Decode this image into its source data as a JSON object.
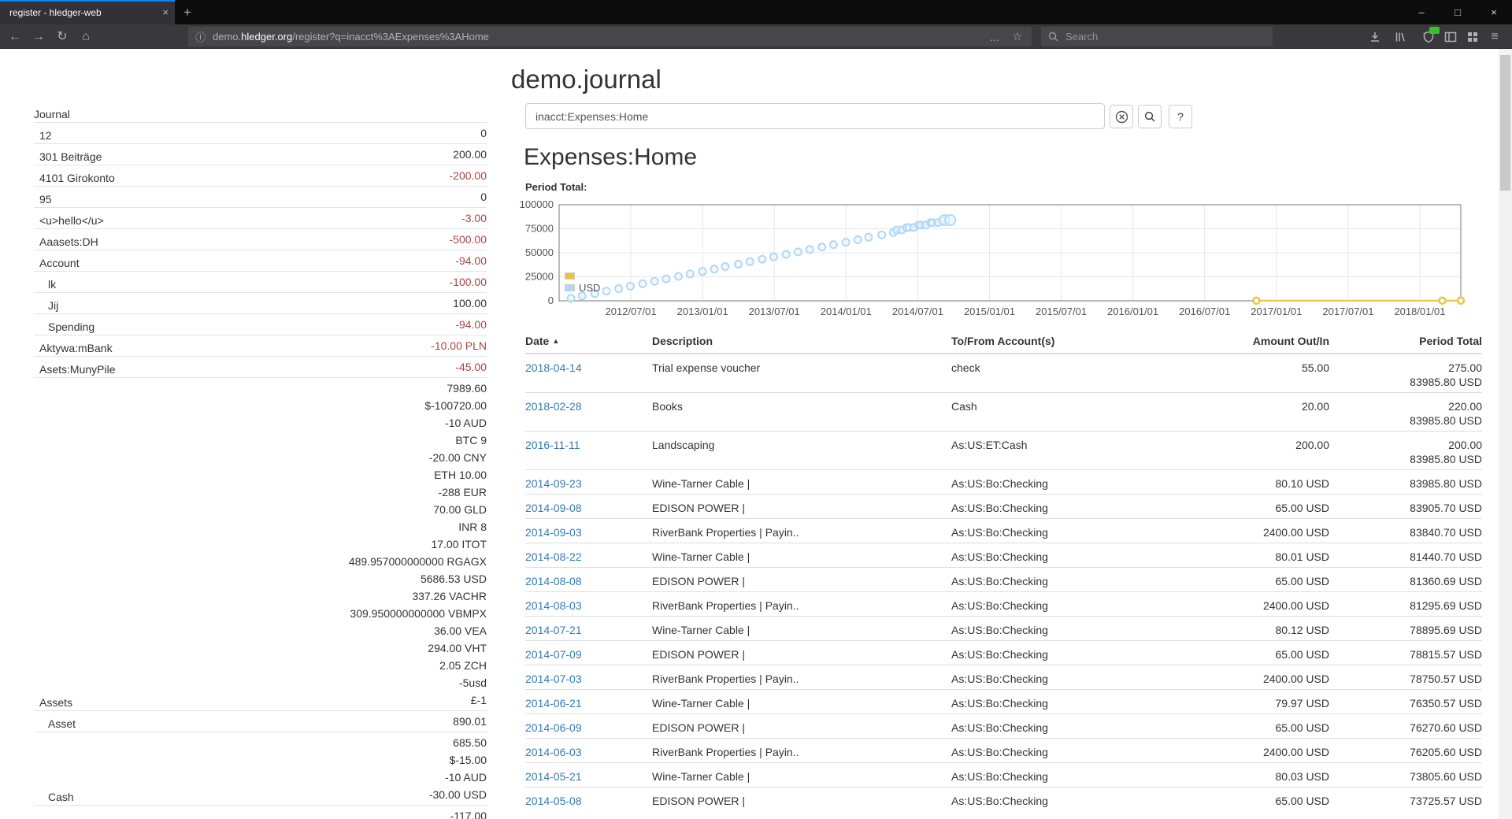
{
  "browser": {
    "tab_title": "register - hledger-web",
    "url": {
      "subdomain": "demo.",
      "domain": "hledger.org",
      "path": "/register?q=inacct%3AExpenses%3AHome"
    },
    "search_placeholder": "Search"
  },
  "icons": {
    "new_tab": "+",
    "tab_close": "×",
    "window_minimize": "–",
    "window_maximize": "□",
    "window_close": "×",
    "back": "←",
    "forward": "→",
    "reload": "↻",
    "home": "⌂",
    "info": "ⓘ",
    "page_actions": "…",
    "bookmark_star": "☆",
    "menu": "≡",
    "help": "?",
    "sort_asc": "▲"
  },
  "colors": {
    "link": "#337ab7",
    "negative": "#a94442",
    "tab_accent": "#0a84ff",
    "series_yellow": "#edc240",
    "series_blue": "#afd8f8"
  },
  "page": {
    "title": "demo.journal",
    "query": "inacct:Expenses:Home",
    "heading": "Expenses:Home",
    "chart_label": "Period Total:"
  },
  "sidebar": {
    "journal_label": "Journal",
    "accounts": [
      {
        "name": "12",
        "indent": 1,
        "amounts": [
          {
            "text": "0",
            "neg": false
          }
        ]
      },
      {
        "name": "301 Beiträge",
        "indent": 1,
        "amounts": [
          {
            "text": "200.00",
            "neg": false
          }
        ]
      },
      {
        "name": "4101 Girokonto",
        "indent": 1,
        "amounts": [
          {
            "text": "-200.00",
            "neg": true
          }
        ]
      },
      {
        "name": "95",
        "indent": 1,
        "amounts": [
          {
            "text": "0",
            "neg": false
          }
        ]
      },
      {
        "name": "<u>hello</u>",
        "indent": 1,
        "amounts": [
          {
            "text": "-3.00",
            "neg": true
          }
        ]
      },
      {
        "name": "Aaasets:DH",
        "indent": 1,
        "amounts": [
          {
            "text": "-500.00",
            "neg": true
          }
        ]
      },
      {
        "name": "Account",
        "indent": 1,
        "amounts": [
          {
            "text": "-94.00",
            "neg": true
          }
        ]
      },
      {
        "name": "lk",
        "indent": 2,
        "amounts": [
          {
            "text": "-100.00",
            "neg": true
          }
        ]
      },
      {
        "name": "Jij",
        "indent": 2,
        "amounts": [
          {
            "text": "100.00",
            "neg": false
          }
        ]
      },
      {
        "name": "Spending",
        "indent": 2,
        "amounts": [
          {
            "text": "-94.00",
            "neg": true
          }
        ]
      },
      {
        "name": "Aktywa:mBank",
        "indent": 1,
        "amounts": [
          {
            "text": "-10.00 PLN",
            "neg": true
          }
        ]
      },
      {
        "name": "Asets:MunyPile",
        "indent": 1,
        "amounts": [
          {
            "text": "-45.00",
            "neg": true
          }
        ]
      },
      {
        "name": "Assets",
        "indent": 1,
        "amounts": [
          {
            "text": "7989.60",
            "neg": false
          },
          {
            "text": "$-100720.00",
            "neg": false
          },
          {
            "text": "-10 AUD",
            "neg": false
          },
          {
            "text": "BTC 9",
            "neg": false
          },
          {
            "text": "-20.00 CNY",
            "neg": false
          },
          {
            "text": "ETH 10.00",
            "neg": false
          },
          {
            "text": "-288 EUR",
            "neg": false
          },
          {
            "text": "70.00 GLD",
            "neg": false
          },
          {
            "text": "INR 8",
            "neg": false
          },
          {
            "text": "17.00 ITOT",
            "neg": false
          },
          {
            "text": "489.957000000000 RGAGX",
            "neg": false
          },
          {
            "text": "5686.53 USD",
            "neg": false
          },
          {
            "text": "337.26 VACHR",
            "neg": false
          },
          {
            "text": "309.950000000000 VBMPX",
            "neg": false
          },
          {
            "text": "36.00 VEA",
            "neg": false
          },
          {
            "text": "294.00 VHT",
            "neg": false
          },
          {
            "text": "2.05 ZCH",
            "neg": false
          },
          {
            "text": "-5usd",
            "neg": false
          },
          {
            "text": "£-1",
            "neg": false
          }
        ]
      },
      {
        "name": "Asset",
        "indent": 2,
        "amounts": [
          {
            "text": "890.01",
            "neg": false
          }
        ]
      },
      {
        "name": "Cash",
        "indent": 2,
        "amounts": [
          {
            "text": "685.50",
            "neg": false
          },
          {
            "text": "$-15.00",
            "neg": false
          },
          {
            "text": "-10 AUD",
            "neg": false
          },
          {
            "text": "-30.00 USD",
            "neg": false
          }
        ]
      },
      {
        "name": "",
        "indent": 2,
        "amounts": [
          {
            "text": "-117.00",
            "neg": false
          }
        ]
      }
    ]
  },
  "register": {
    "columns": [
      "Date",
      "Description",
      "To/From Account(s)",
      "Amount Out/In",
      "Period Total"
    ],
    "sorted_by": "Date",
    "sort_direction": "asc",
    "rows": [
      {
        "date": "2018-04-14",
        "description": "Trial expense voucher",
        "account": "check",
        "amount": "55.00",
        "total": [
          "275.00",
          "83985.80 USD"
        ]
      },
      {
        "date": "2018-02-28",
        "description": "Books",
        "account": "Cash",
        "amount": "20.00",
        "total": [
          "220.00",
          "83985.80 USD"
        ]
      },
      {
        "date": "2016-11-11",
        "description": "Landscaping",
        "account": "As:US:ET:Cash",
        "amount": "200.00",
        "total": [
          "200.00",
          "83985.80 USD"
        ]
      },
      {
        "date": "2014-09-23",
        "description": "Wine-Tarner Cable |",
        "account": "As:US:Bo:Checking",
        "amount": "80.10 USD",
        "total": [
          "83985.80 USD"
        ]
      },
      {
        "date": "2014-09-08",
        "description": "EDISON POWER |",
        "account": "As:US:Bo:Checking",
        "amount": "65.00 USD",
        "total": [
          "83905.70 USD"
        ]
      },
      {
        "date": "2014-09-03",
        "description": "RiverBank Properties | Payin..",
        "account": "As:US:Bo:Checking",
        "amount": "2400.00 USD",
        "total": [
          "83840.70 USD"
        ]
      },
      {
        "date": "2014-08-22",
        "description": "Wine-Tarner Cable |",
        "account": "As:US:Bo:Checking",
        "amount": "80.01 USD",
        "total": [
          "81440.70 USD"
        ]
      },
      {
        "date": "2014-08-08",
        "description": "EDISON POWER |",
        "account": "As:US:Bo:Checking",
        "amount": "65.00 USD",
        "total": [
          "81360.69 USD"
        ]
      },
      {
        "date": "2014-08-03",
        "description": "RiverBank Properties | Payin..",
        "account": "As:US:Bo:Checking",
        "amount": "2400.00 USD",
        "total": [
          "81295.69 USD"
        ]
      },
      {
        "date": "2014-07-21",
        "description": "Wine-Tarner Cable |",
        "account": "As:US:Bo:Checking",
        "amount": "80.12 USD",
        "total": [
          "78895.69 USD"
        ]
      },
      {
        "date": "2014-07-09",
        "description": "EDISON POWER |",
        "account": "As:US:Bo:Checking",
        "amount": "65.00 USD",
        "total": [
          "78815.57 USD"
        ]
      },
      {
        "date": "2014-07-03",
        "description": "RiverBank Properties | Payin..",
        "account": "As:US:Bo:Checking",
        "amount": "2400.00 USD",
        "total": [
          "78750.57 USD"
        ]
      },
      {
        "date": "2014-06-21",
        "description": "Wine-Tarner Cable |",
        "account": "As:US:Bo:Checking",
        "amount": "79.97 USD",
        "total": [
          "76350.57 USD"
        ]
      },
      {
        "date": "2014-06-09",
        "description": "EDISON POWER |",
        "account": "As:US:Bo:Checking",
        "amount": "65.00 USD",
        "total": [
          "76270.60 USD"
        ]
      },
      {
        "date": "2014-06-03",
        "description": "RiverBank Properties | Payin..",
        "account": "As:US:Bo:Checking",
        "amount": "2400.00 USD",
        "total": [
          "76205.60 USD"
        ]
      },
      {
        "date": "2014-05-21",
        "description": "Wine-Tarner Cable |",
        "account": "As:US:Bo:Checking",
        "amount": "80.03 USD",
        "total": [
          "73805.60 USD"
        ]
      },
      {
        "date": "2014-05-08",
        "description": "EDISON POWER |",
        "account": "As:US:Bo:Checking",
        "amount": "65.00 USD",
        "total": [
          "73725.57 USD"
        ]
      }
    ]
  },
  "chart_data": {
    "type": "scatter",
    "title": "Period Total:",
    "x_range": [
      "2012-01-01",
      "2018-04-14"
    ],
    "y_range": [
      0,
      100000
    ],
    "y_ticks": [
      0,
      25000,
      50000,
      75000,
      100000
    ],
    "x_ticks": [
      [
        "2012-07-01",
        "2012/07/01"
      ],
      [
        "2013-01-01",
        "2013/01/01"
      ],
      [
        "2013-07-01",
        "2013/07/01"
      ],
      [
        "2014-01-01",
        "2014/01/01"
      ],
      [
        "2014-07-01",
        "2014/07/01"
      ],
      [
        "2015-01-01",
        "2015/01/01"
      ],
      [
        "2015-07-01",
        "2015/07/01"
      ],
      [
        "2016-01-01",
        "2016/01/01"
      ],
      [
        "2016-07-01",
        "2016/07/01"
      ],
      [
        "2017-01-01",
        "2017/01/01"
      ],
      [
        "2017-07-01",
        "2017/07/01"
      ],
      [
        "2018-01-01",
        "2018/01/01"
      ]
    ],
    "grid": true,
    "legend_position": "bottom-left",
    "series": [
      {
        "name": "",
        "color": "#edc240",
        "style": "line-points",
        "points": [
          [
            "2016-11-11",
            200
          ],
          [
            "2018-02-28",
            220
          ],
          [
            "2018-04-14",
            275
          ]
        ]
      },
      {
        "name": "USD",
        "color": "#afd8f8",
        "style": "points",
        "points": [
          [
            "2012-01-31",
            2545
          ],
          [
            "2012-02-29",
            5090
          ],
          [
            "2012-03-31",
            7635
          ],
          [
            "2012-04-30",
            10180
          ],
          [
            "2012-05-31",
            12725
          ],
          [
            "2012-06-30",
            15270
          ],
          [
            "2012-07-31",
            17815
          ],
          [
            "2012-08-31",
            20360
          ],
          [
            "2012-09-30",
            22905
          ],
          [
            "2012-10-31",
            25450
          ],
          [
            "2012-11-30",
            27995
          ],
          [
            "2012-12-31",
            30540
          ],
          [
            "2013-01-31",
            33085
          ],
          [
            "2013-02-28",
            35630
          ],
          [
            "2013-03-31",
            38175
          ],
          [
            "2013-04-30",
            40721
          ],
          [
            "2013-05-31",
            43266
          ],
          [
            "2013-06-30",
            45811
          ],
          [
            "2013-07-31",
            48356
          ],
          [
            "2013-08-31",
            50901
          ],
          [
            "2013-09-30",
            53446
          ],
          [
            "2013-10-31",
            55991
          ],
          [
            "2013-11-30",
            58536
          ],
          [
            "2013-12-31",
            61081
          ],
          [
            "2014-01-31",
            63626
          ],
          [
            "2014-02-28",
            66171
          ],
          [
            "2014-03-31",
            68716
          ],
          [
            "2014-04-30",
            71261
          ],
          [
            "2014-05-08",
            73725.57
          ],
          [
            "2014-05-21",
            73805.6
          ],
          [
            "2014-06-03",
            76205.6
          ],
          [
            "2014-06-09",
            76270.6
          ],
          [
            "2014-06-21",
            76350.57
          ],
          [
            "2014-07-03",
            78750.57
          ],
          [
            "2014-07-09",
            78815.57
          ],
          [
            "2014-07-21",
            78895.69
          ],
          [
            "2014-08-03",
            81295.69
          ],
          [
            "2014-08-08",
            81360.69
          ],
          [
            "2014-08-22",
            81440.7
          ],
          [
            "2014-09-03",
            83840.7
          ],
          [
            "2014-09-08",
            83905.7
          ],
          [
            "2014-09-23",
            83985.8
          ]
        ]
      }
    ],
    "legend": [
      {
        "label": "",
        "color": "#edc240"
      },
      {
        "label": "USD",
        "color": "#afd8f8"
      }
    ]
  }
}
